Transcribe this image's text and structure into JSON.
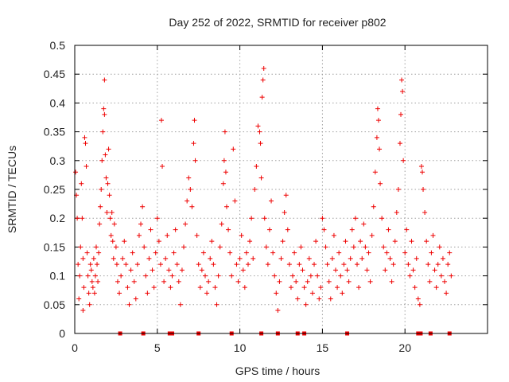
{
  "chart_data": {
    "type": "scatter",
    "title": "Day 252 of 2022, SRMTID for receiver p802",
    "xlabel": "GPS time / hours",
    "ylabel": "SRMTID / TECUs",
    "xlim": [
      0,
      25
    ],
    "ylim": [
      0,
      0.5
    ],
    "xticks": [
      0,
      5,
      10,
      15,
      20
    ],
    "xtick_labels": [
      "0",
      "5",
      "10",
      "15",
      "20"
    ],
    "yticks": [
      0,
      0.05,
      0.1,
      0.15,
      0.2,
      0.25,
      0.3,
      0.35,
      0.4,
      0.45,
      0.5
    ],
    "ytick_labels": [
      "0",
      "0.05",
      "0.1",
      "0.15",
      "0.2",
      "0.25",
      "0.3",
      "0.35",
      "0.4",
      "0.45",
      "0.5"
    ],
    "grid": true,
    "marker": "+",
    "color": "#ee0000",
    "series": [
      {
        "name": "SRMTID",
        "points": [
          [
            0.05,
            0.28
          ],
          [
            0.1,
            0.24
          ],
          [
            0.15,
            0.2
          ],
          [
            0.2,
            0.12
          ],
          [
            0.25,
            0.06
          ],
          [
            0.3,
            0.1
          ],
          [
            0.35,
            0.15
          ],
          [
            0.4,
            0.26
          ],
          [
            0.45,
            0.2
          ],
          [
            0.5,
            0.13
          ],
          [
            0.5,
            0.04
          ],
          [
            0.55,
            0.08
          ],
          [
            0.6,
            0.34
          ],
          [
            0.65,
            0.33
          ],
          [
            0.7,
            0.29
          ],
          [
            0.75,
            0.14
          ],
          [
            0.8,
            0.1
          ],
          [
            0.85,
            0.07
          ],
          [
            0.9,
            0.05
          ],
          [
            0.95,
            0.12
          ],
          [
            1.0,
            0.11
          ],
          [
            1.05,
            0.09
          ],
          [
            1.1,
            0.08
          ],
          [
            1.15,
            0.13
          ],
          [
            1.2,
            0.07
          ],
          [
            1.25,
            0.1
          ],
          [
            1.3,
            0.15
          ],
          [
            1.35,
            0.12
          ],
          [
            1.4,
            0.09
          ],
          [
            1.45,
            0.14
          ],
          [
            1.5,
            0.19
          ],
          [
            1.55,
            0.22
          ],
          [
            1.6,
            0.25
          ],
          [
            1.65,
            0.3
          ],
          [
            1.7,
            0.35
          ],
          [
            1.75,
            0.39
          ],
          [
            1.8,
            0.38
          ],
          [
            1.85,
            0.31
          ],
          [
            1.9,
            0.27
          ],
          [
            1.95,
            0.21
          ],
          [
            1.8,
            0.44
          ],
          [
            2.0,
            0.26
          ],
          [
            2.05,
            0.32
          ],
          [
            2.1,
            0.24
          ],
          [
            2.15,
            0.2
          ],
          [
            2.2,
            0.17
          ],
          [
            2.25,
            0.21
          ],
          [
            2.3,
            0.16
          ],
          [
            2.35,
            0.13
          ],
          [
            2.4,
            0.19
          ],
          [
            2.5,
            0.15
          ],
          [
            2.55,
            0.12
          ],
          [
            2.6,
            0.09
          ],
          [
            2.7,
            0.07
          ],
          [
            2.8,
            0.1
          ],
          [
            2.9,
            0.13
          ],
          [
            3.0,
            0.16
          ],
          [
            3.1,
            0.12
          ],
          [
            3.2,
            0.08
          ],
          [
            3.3,
            0.05
          ],
          [
            3.4,
            0.11
          ],
          [
            3.5,
            0.14
          ],
          [
            3.6,
            0.09
          ],
          [
            3.7,
            0.06
          ],
          [
            3.8,
            0.12
          ],
          [
            3.9,
            0.17
          ],
          [
            4.0,
            0.19
          ],
          [
            4.1,
            0.22
          ],
          [
            4.2,
            0.15
          ],
          [
            4.3,
            0.1
          ],
          [
            4.4,
            0.07
          ],
          [
            4.5,
            0.13
          ],
          [
            4.6,
            0.18
          ],
          [
            4.7,
            0.11
          ],
          [
            4.8,
            0.08
          ],
          [
            4.9,
            0.14
          ],
          [
            5.0,
            0.2
          ],
          [
            5.1,
            0.16
          ],
          [
            5.2,
            0.12
          ],
          [
            5.25,
            0.37
          ],
          [
            5.3,
            0.29
          ],
          [
            5.4,
            0.09
          ],
          [
            5.5,
            0.13
          ],
          [
            5.6,
            0.17
          ],
          [
            5.7,
            0.11
          ],
          [
            5.8,
            0.08
          ],
          [
            5.9,
            0.1
          ],
          [
            6.0,
            0.14
          ],
          [
            6.1,
            0.18
          ],
          [
            6.2,
            0.12
          ],
          [
            6.3,
            0.09
          ],
          [
            6.4,
            0.05
          ],
          [
            6.5,
            0.11
          ],
          [
            6.6,
            0.15
          ],
          [
            6.7,
            0.19
          ],
          [
            6.8,
            0.23
          ],
          [
            6.9,
            0.27
          ],
          [
            7.0,
            0.25
          ],
          [
            7.1,
            0.22
          ],
          [
            7.2,
            0.33
          ],
          [
            7.25,
            0.37
          ],
          [
            7.3,
            0.3
          ],
          [
            7.4,
            0.17
          ],
          [
            7.5,
            0.12
          ],
          [
            7.6,
            0.08
          ],
          [
            7.7,
            0.11
          ],
          [
            7.8,
            0.14
          ],
          [
            7.9,
            0.1
          ],
          [
            8.0,
            0.07
          ],
          [
            8.1,
            0.09
          ],
          [
            8.2,
            0.13
          ],
          [
            8.3,
            0.16
          ],
          [
            8.4,
            0.12
          ],
          [
            8.5,
            0.08
          ],
          [
            8.6,
            0.05
          ],
          [
            8.7,
            0.1
          ],
          [
            8.8,
            0.15
          ],
          [
            8.9,
            0.19
          ],
          [
            9.0,
            0.26
          ],
          [
            9.05,
            0.3
          ],
          [
            9.1,
            0.35
          ],
          [
            9.15,
            0.28
          ],
          [
            9.2,
            0.22
          ],
          [
            9.3,
            0.18
          ],
          [
            9.4,
            0.14
          ],
          [
            9.5,
            0.1
          ],
          [
            9.6,
            0.32
          ],
          [
            9.7,
            0.23
          ],
          [
            9.8,
            0.12
          ],
          [
            9.9,
            0.09
          ],
          [
            10.0,
            0.13
          ],
          [
            10.1,
            0.17
          ],
          [
            10.2,
            0.11
          ],
          [
            10.3,
            0.08
          ],
          [
            10.4,
            0.14
          ],
          [
            10.5,
            0.12
          ],
          [
            10.6,
            0.16
          ],
          [
            10.7,
            0.2
          ],
          [
            10.8,
            0.13
          ],
          [
            10.9,
            0.25
          ],
          [
            11.0,
            0.29
          ],
          [
            11.1,
            0.36
          ],
          [
            11.2,
            0.35
          ],
          [
            11.25,
            0.33
          ],
          [
            11.3,
            0.27
          ],
          [
            11.35,
            0.41
          ],
          [
            11.4,
            0.44
          ],
          [
            11.45,
            0.46
          ],
          [
            11.5,
            0.2
          ],
          [
            11.6,
            0.15
          ],
          [
            11.7,
            0.12
          ],
          [
            11.8,
            0.18
          ],
          [
            11.9,
            0.23
          ],
          [
            12.0,
            0.14
          ],
          [
            12.1,
            0.1
          ],
          [
            12.2,
            0.07
          ],
          [
            12.3,
            0.04
          ],
          [
            12.4,
            0.09
          ],
          [
            12.5,
            0.13
          ],
          [
            12.6,
            0.16
          ],
          [
            12.7,
            0.21
          ],
          [
            12.8,
            0.24
          ],
          [
            12.9,
            0.18
          ],
          [
            13.0,
            0.12
          ],
          [
            13.1,
            0.08
          ],
          [
            13.2,
            0.1
          ],
          [
            13.3,
            0.14
          ],
          [
            13.4,
            0.09
          ],
          [
            13.5,
            0.06
          ],
          [
            13.6,
            0.12
          ],
          [
            13.7,
            0.15
          ],
          [
            13.8,
            0.11
          ],
          [
            13.9,
            0.08
          ],
          [
            14.0,
            0.05
          ],
          [
            14.1,
            0.09
          ],
          [
            14.2,
            0.13
          ],
          [
            14.3,
            0.1
          ],
          [
            14.4,
            0.07
          ],
          [
            14.5,
            0.12
          ],
          [
            14.6,
            0.16
          ],
          [
            14.7,
            0.1
          ],
          [
            14.8,
            0.06
          ],
          [
            14.9,
            0.08
          ],
          [
            15.0,
            0.2
          ],
          [
            15.1,
            0.18
          ],
          [
            15.2,
            0.15
          ],
          [
            15.3,
            0.12
          ],
          [
            15.4,
            0.09
          ],
          [
            15.5,
            0.06
          ],
          [
            15.6,
            0.13
          ],
          [
            15.7,
            0.17
          ],
          [
            15.8,
            0.11
          ],
          [
            15.9,
            0.08
          ],
          [
            16.0,
            0.14
          ],
          [
            16.1,
            0.1
          ],
          [
            16.2,
            0.07
          ],
          [
            16.3,
            0.12
          ],
          [
            16.4,
            0.16
          ],
          [
            16.5,
            0.11
          ],
          [
            16.6,
            0.09
          ],
          [
            16.7,
            0.13
          ],
          [
            16.8,
            0.18
          ],
          [
            16.9,
            0.15
          ],
          [
            17.0,
            0.2
          ],
          [
            17.1,
            0.12
          ],
          [
            17.2,
            0.08
          ],
          [
            17.3,
            0.16
          ],
          [
            17.4,
            0.13
          ],
          [
            17.5,
            0.19
          ],
          [
            17.6,
            0.15
          ],
          [
            17.7,
            0.11
          ],
          [
            17.8,
            0.14
          ],
          [
            17.9,
            0.09
          ],
          [
            18.0,
            0.17
          ],
          [
            18.1,
            0.22
          ],
          [
            18.2,
            0.28
          ],
          [
            18.3,
            0.34
          ],
          [
            18.35,
            0.39
          ],
          [
            18.4,
            0.37
          ],
          [
            18.45,
            0.32
          ],
          [
            18.5,
            0.26
          ],
          [
            18.6,
            0.2
          ],
          [
            18.7,
            0.15
          ],
          [
            18.8,
            0.11
          ],
          [
            18.9,
            0.14
          ],
          [
            19.0,
            0.18
          ],
          [
            19.1,
            0.13
          ],
          [
            19.2,
            0.09
          ],
          [
            19.3,
            0.12
          ],
          [
            19.4,
            0.16
          ],
          [
            19.5,
            0.21
          ],
          [
            19.6,
            0.25
          ],
          [
            19.7,
            0.33
          ],
          [
            19.75,
            0.38
          ],
          [
            19.8,
            0.44
          ],
          [
            19.85,
            0.42
          ],
          [
            19.9,
            0.3
          ],
          [
            20.0,
            0.14
          ],
          [
            20.1,
            0.18
          ],
          [
            20.2,
            0.12
          ],
          [
            20.3,
            0.1
          ],
          [
            20.4,
            0.16
          ],
          [
            20.5,
            0.11
          ],
          [
            20.6,
            0.08
          ],
          [
            20.7,
            0.13
          ],
          [
            20.8,
            0.06
          ],
          [
            20.9,
            0.05
          ],
          [
            21.0,
            0.29
          ],
          [
            21.05,
            0.28
          ],
          [
            21.1,
            0.25
          ],
          [
            21.2,
            0.21
          ],
          [
            21.3,
            0.16
          ],
          [
            21.4,
            0.12
          ],
          [
            21.5,
            0.09
          ],
          [
            21.6,
            0.14
          ],
          [
            21.7,
            0.17
          ],
          [
            21.8,
            0.11
          ],
          [
            21.9,
            0.08
          ],
          [
            22.0,
            0.12
          ],
          [
            22.1,
            0.15
          ],
          [
            22.2,
            0.1
          ],
          [
            22.3,
            0.13
          ],
          [
            22.4,
            0.09
          ],
          [
            22.5,
            0.07
          ],
          [
            22.6,
            0.12
          ],
          [
            22.7,
            0.14
          ],
          [
            22.8,
            0.1
          ]
        ],
        "zero_markers_x": [
          2.75,
          4.15,
          5.75,
          5.9,
          7.5,
          9.5,
          11.3,
          12.3,
          13.5,
          13.9,
          16.5,
          20.8,
          20.95,
          21.55,
          22.7
        ]
      }
    ]
  }
}
